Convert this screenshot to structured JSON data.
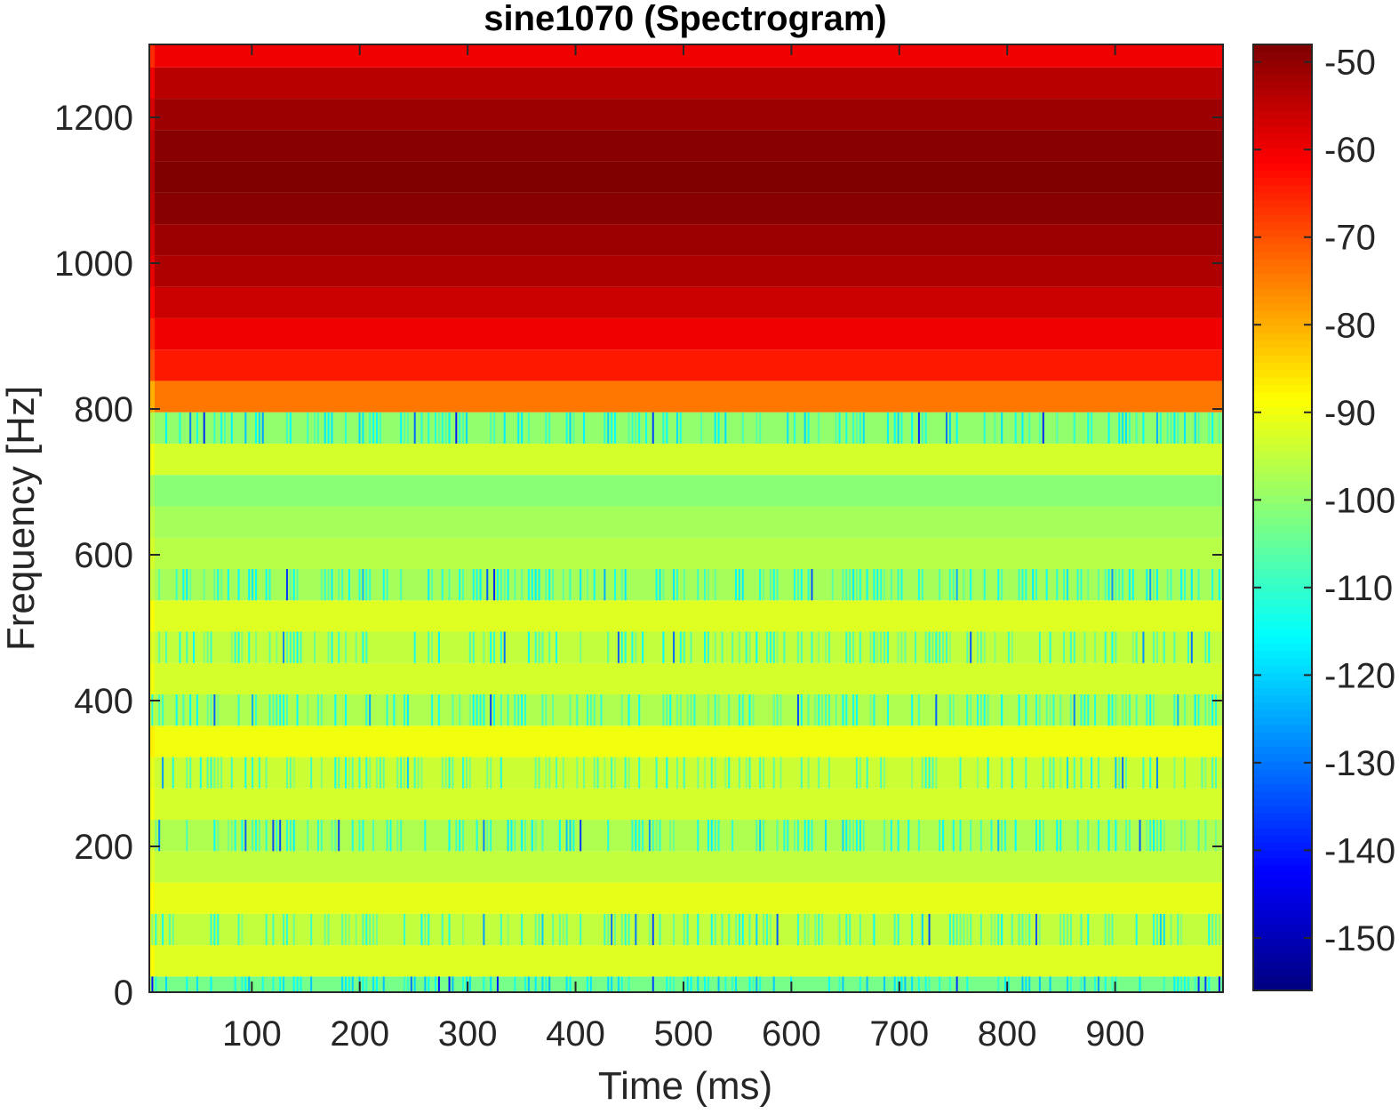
{
  "chart_data": {
    "type": "heatmap",
    "title": "sine1070 (Spectrogram)",
    "xlabel": "Time (ms)",
    "ylabel": "Frequency [Hz]",
    "xlim": [
      5,
      1000
    ],
    "ylim": [
      0,
      1300
    ],
    "xticks": [
      100,
      200,
      300,
      400,
      500,
      600,
      700,
      800,
      900
    ],
    "yticks": [
      0,
      200,
      400,
      600,
      800,
      1000,
      1200
    ],
    "colorbar": {
      "colormap": "jet",
      "clim": [
        -156,
        -48
      ],
      "ticks": [
        -50,
        -60,
        -70,
        -80,
        -90,
        -100,
        -110,
        -120,
        -130,
        -140,
        -150
      ]
    },
    "freq_bin_width_hz": 43,
    "bands": [
      {
        "f_low": 0,
        "f_high": 21.5,
        "level_db": -103,
        "speckle": true
      },
      {
        "f_low": 21.5,
        "f_high": 64.5,
        "level_db": -92,
        "speckle": false
      },
      {
        "f_low": 64.5,
        "f_high": 107.5,
        "level_db": -95,
        "speckle": true
      },
      {
        "f_low": 107.5,
        "f_high": 150.5,
        "level_db": -91,
        "speckle": false
      },
      {
        "f_low": 150.5,
        "f_high": 193.5,
        "level_db": -95,
        "speckle": false
      },
      {
        "f_low": 193.5,
        "f_high": 236.5,
        "level_db": -97,
        "speckle": true
      },
      {
        "f_low": 236.5,
        "f_high": 279.5,
        "level_db": -93,
        "speckle": false
      },
      {
        "f_low": 279.5,
        "f_high": 322.5,
        "level_db": -94,
        "speckle": true
      },
      {
        "f_low": 322.5,
        "f_high": 365.5,
        "level_db": -90,
        "speckle": false
      },
      {
        "f_low": 365.5,
        "f_high": 408.5,
        "level_db": -97,
        "speckle": true
      },
      {
        "f_low": 408.5,
        "f_high": 451.5,
        "level_db": -93,
        "speckle": false
      },
      {
        "f_low": 451.5,
        "f_high": 494.5,
        "level_db": -95,
        "speckle": true
      },
      {
        "f_low": 494.5,
        "f_high": 537.5,
        "level_db": -92,
        "speckle": false
      },
      {
        "f_low": 537.5,
        "f_high": 580.5,
        "level_db": -98,
        "speckle": true
      },
      {
        "f_low": 580.5,
        "f_high": 623.5,
        "level_db": -96,
        "speckle": false
      },
      {
        "f_low": 623.5,
        "f_high": 666.5,
        "level_db": -98,
        "speckle": false
      },
      {
        "f_low": 666.5,
        "f_high": 709.5,
        "level_db": -101,
        "speckle": false
      },
      {
        "f_low": 709.5,
        "f_high": 752.5,
        "level_db": -93,
        "speckle": false
      },
      {
        "f_low": 752.5,
        "f_high": 795.5,
        "level_db": -100,
        "speckle": true
      },
      {
        "f_low": 795.5,
        "f_high": 838.5,
        "level_db": -74,
        "speckle": false
      },
      {
        "f_low": 838.5,
        "f_high": 881.5,
        "level_db": -64,
        "speckle": false
      },
      {
        "f_low": 881.5,
        "f_high": 924.5,
        "level_db": -60,
        "speckle": false
      },
      {
        "f_low": 924.5,
        "f_high": 967.5,
        "level_db": -56,
        "speckle": false
      },
      {
        "f_low": 967.5,
        "f_high": 1010.5,
        "level_db": -53,
        "speckle": false
      },
      {
        "f_low": 1010.5,
        "f_high": 1053.5,
        "level_db": -51,
        "speckle": false
      },
      {
        "f_low": 1053.5,
        "f_high": 1096.5,
        "level_db": -49,
        "speckle": false
      },
      {
        "f_low": 1096.5,
        "f_high": 1139.5,
        "level_db": -48,
        "speckle": false
      },
      {
        "f_low": 1139.5,
        "f_high": 1182.5,
        "level_db": -49,
        "speckle": false
      },
      {
        "f_low": 1182.5,
        "f_high": 1225.5,
        "level_db": -51,
        "speckle": false
      },
      {
        "f_low": 1225.5,
        "f_high": 1268.5,
        "level_db": -54,
        "speckle": false
      },
      {
        "f_low": 1268.5,
        "f_high": 1300,
        "level_db": -60,
        "speckle": false
      }
    ],
    "onset_column": {
      "t_low": 5,
      "t_high": 10
    }
  }
}
